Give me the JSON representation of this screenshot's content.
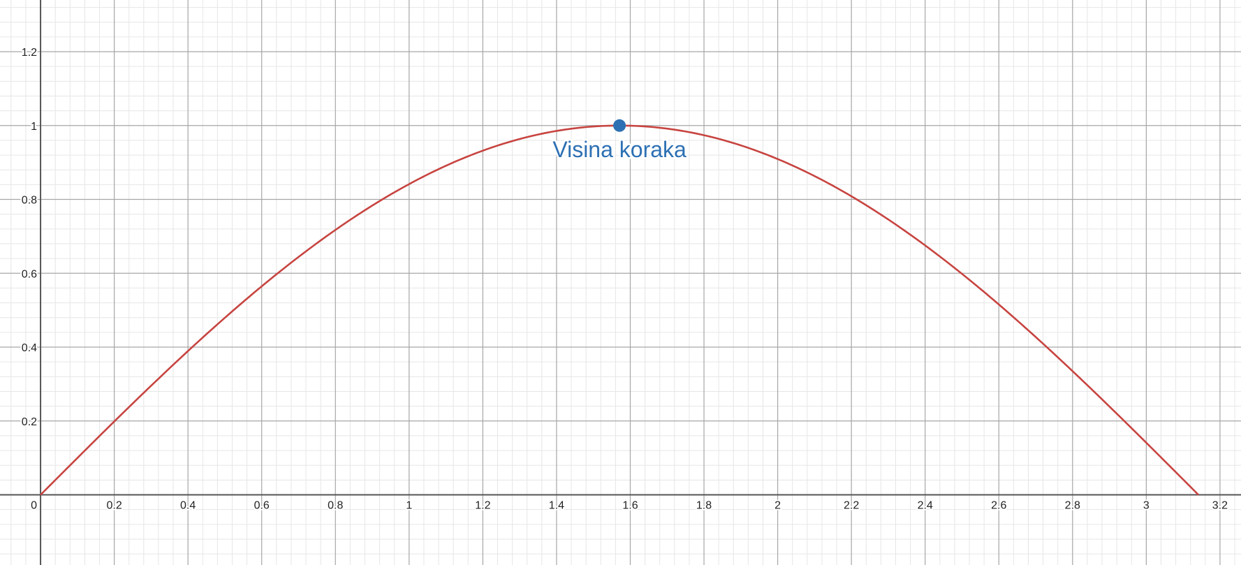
{
  "chart_data": {
    "type": "line",
    "title": "",
    "xlabel": "",
    "ylabel": "",
    "xlim": [
      -0.11,
      3.257
    ],
    "ylim": [
      -0.19,
      1.34
    ],
    "grid": true,
    "x_major_step": 0.2,
    "y_major_step": 0.2,
    "minor_divisions": 5,
    "x_tick_labels": [
      "0.2",
      "0.4",
      "0.6",
      "0.8",
      "1",
      "1.2",
      "1.4",
      "1.6",
      "1.8",
      "2",
      "2.2",
      "2.4",
      "2.6",
      "2.8",
      "3",
      "3.2"
    ],
    "y_tick_labels": [
      "0.2",
      "0.4",
      "0.6",
      "0.8",
      "1",
      "1.2"
    ],
    "origin_label": "0",
    "series": [
      {
        "function": "sin(x)",
        "x_range": [
          0,
          3.14159
        ],
        "sample_x": [
          0,
          0.2,
          0.4,
          0.6,
          0.8,
          1.0,
          1.2,
          1.4,
          1.5708,
          1.8,
          2.0,
          2.2,
          2.4,
          2.6,
          2.8,
          3.0,
          3.14159
        ],
        "sample_y": [
          0,
          0.199,
          0.389,
          0.565,
          0.717,
          0.841,
          0.932,
          0.985,
          1.0,
          0.974,
          0.909,
          0.808,
          0.675,
          0.516,
          0.335,
          0.141,
          0
        ],
        "color": "#c74440"
      }
    ],
    "annotations": [
      {
        "text": "Visina koraka",
        "x": 1.5708,
        "y": 1.0,
        "color": "#2d70b3"
      }
    ]
  },
  "colors": {
    "axis": "#555555",
    "major_grid": "#a6a6a6",
    "minor_grid": "#e6e6e6"
  }
}
